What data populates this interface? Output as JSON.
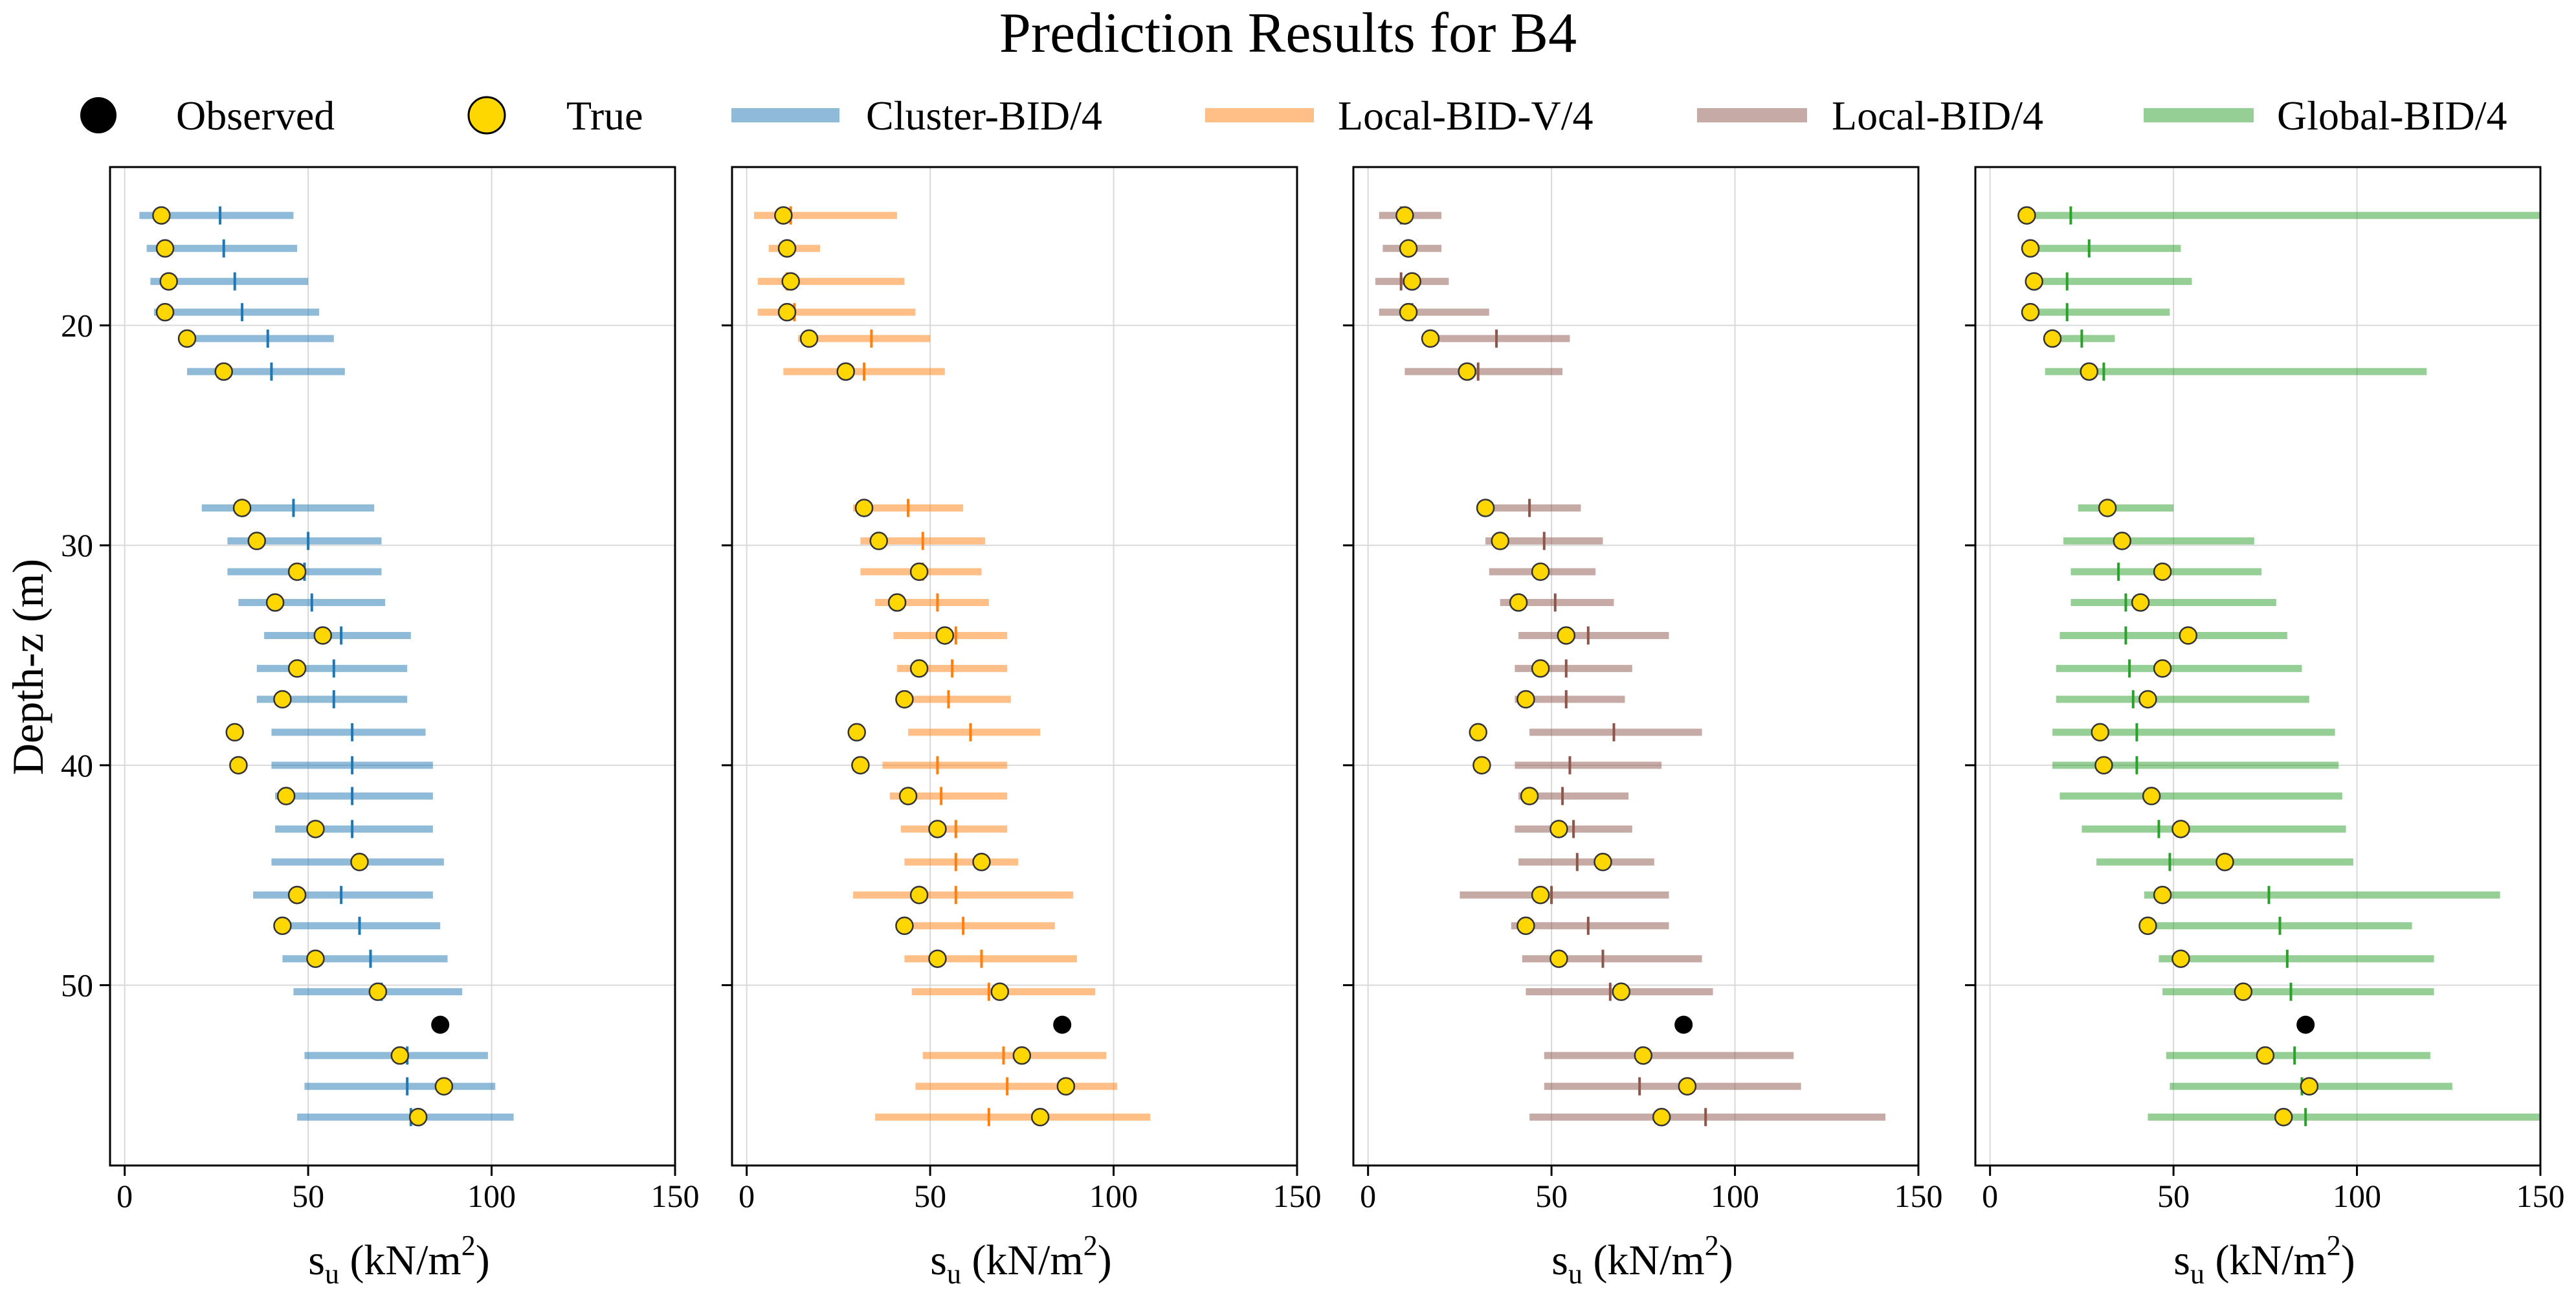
{
  "chart_data": {
    "type": "scatter",
    "title": "Prediction Results for B4",
    "xlabel_main": "s",
    "xlabel_sub": "u",
    "xlabel_unit": " (kN/m",
    "xlabel_sup": "2",
    "xlabel_close": ")",
    "ylabel": "Depth-z (m)",
    "xlim": [
      -4,
      150
    ],
    "ylim": [
      58.2,
      12.8
    ],
    "xticks": [
      0,
      50,
      100,
      150
    ],
    "yticks": [
      20,
      30,
      40,
      50
    ],
    "legend": {
      "position": "top",
      "items": [
        {
          "label": "Observed",
          "kind": "marker",
          "color": "#000000"
        },
        {
          "label": "True",
          "kind": "marker",
          "color": "#FFD700"
        },
        {
          "label": "Cluster-BID/4",
          "kind": "line",
          "color": "#1f77b4"
        },
        {
          "label": "Local-BID-V/4",
          "kind": "line",
          "color": "#ff7f0e"
        },
        {
          "label": "Local-BID/4",
          "kind": "line",
          "color": "#8c564b"
        },
        {
          "label": "Global-BID/4",
          "kind": "line",
          "color": "#2ca02c"
        }
      ]
    },
    "depths": [
      15.0,
      16.5,
      18.0,
      19.4,
      20.6,
      22.1,
      28.3,
      29.8,
      31.2,
      32.6,
      34.1,
      35.6,
      37.0,
      38.5,
      40.0,
      41.4,
      42.9,
      44.4,
      45.9,
      47.3,
      48.8,
      50.3,
      51.8,
      53.2,
      54.6,
      56.0
    ],
    "true_values": [
      10,
      11,
      12,
      11,
      17,
      27,
      32,
      36,
      47,
      41,
      54,
      47,
      43,
      30,
      31,
      44,
      52,
      64,
      47,
      43,
      52,
      69,
      null,
      75,
      87,
      80
    ],
    "observed": [
      {
        "x": 86,
        "y": 51.8
      }
    ],
    "series": [
      {
        "name": "Cluster-BID/4",
        "color": "#1f77b4",
        "median": [
          26,
          27,
          30,
          32,
          39,
          40,
          46,
          50,
          49,
          51,
          59,
          57,
          57,
          62,
          62,
          62,
          62,
          64,
          59,
          64,
          67,
          70,
          null,
          77,
          77,
          78
        ],
        "lower": [
          4,
          6,
          7,
          8,
          15,
          17,
          21,
          28,
          28,
          31,
          38,
          36,
          36,
          40,
          40,
          41,
          41,
          40,
          35,
          44,
          43,
          46,
          null,
          49,
          49,
          47
        ],
        "upper": [
          46,
          47,
          50,
          53,
          57,
          60,
          68,
          70,
          70,
          71,
          78,
          77,
          77,
          82,
          84,
          84,
          84,
          87,
          84,
          86,
          88,
          92,
          null,
          99,
          101,
          106
        ]
      },
      {
        "name": "Local-BID-V/4",
        "color": "#ff7f0e",
        "median": [
          12,
          11,
          11,
          13,
          34,
          32,
          44,
          48,
          48,
          52,
          57,
          56,
          55,
          61,
          52,
          53,
          57,
          57,
          57,
          59,
          64,
          66,
          null,
          70,
          71,
          66
        ],
        "lower": [
          2,
          6,
          3,
          3,
          14,
          10,
          29,
          31,
          31,
          35,
          40,
          41,
          41,
          44,
          37,
          39,
          42,
          43,
          29,
          41,
          43,
          45,
          null,
          48,
          46,
          35
        ],
        "upper": [
          41,
          20,
          43,
          46,
          50,
          54,
          59,
          65,
          64,
          66,
          71,
          71,
          72,
          80,
          71,
          71,
          71,
          74,
          89,
          84,
          90,
          95,
          null,
          98,
          101,
          110
        ]
      },
      {
        "name": "Local-BID/4",
        "color": "#8c564b",
        "median": [
          9,
          11,
          9,
          12,
          35,
          30,
          44,
          48,
          47,
          51,
          60,
          54,
          54,
          67,
          55,
          53,
          56,
          57,
          50,
          60,
          64,
          66,
          null,
          75,
          74,
          92
        ],
        "lower": [
          3,
          4,
          2,
          3,
          15,
          10,
          30,
          32,
          33,
          36,
          41,
          40,
          40,
          44,
          40,
          41,
          40,
          41,
          25,
          39,
          42,
          43,
          null,
          48,
          48,
          44
        ],
        "upper": [
          20,
          20,
          22,
          33,
          55,
          53,
          58,
          64,
          62,
          67,
          82,
          72,
          70,
          91,
          80,
          71,
          72,
          78,
          82,
          82,
          91,
          94,
          null,
          116,
          118,
          141
        ]
      },
      {
        "name": "Global-BID/4",
        "color": "#2ca02c",
        "median": [
          22,
          27,
          21,
          21,
          25,
          31,
          32,
          36,
          35,
          37,
          37,
          38,
          39,
          40,
          40,
          44,
          46,
          49,
          76,
          79,
          81,
          82,
          null,
          83,
          85,
          86
        ],
        "lower": [
          10,
          12,
          13,
          13,
          19,
          15,
          24,
          20,
          22,
          22,
          19,
          18,
          18,
          17,
          17,
          19,
          25,
          29,
          42,
          42,
          46,
          47,
          null,
          48,
          49,
          43
        ],
        "upper": [
          150,
          52,
          55,
          49,
          34,
          119,
          50,
          72,
          74,
          78,
          81,
          85,
          87,
          94,
          95,
          96,
          97,
          99,
          139,
          115,
          121,
          121,
          null,
          120,
          126,
          150
        ]
      }
    ]
  }
}
